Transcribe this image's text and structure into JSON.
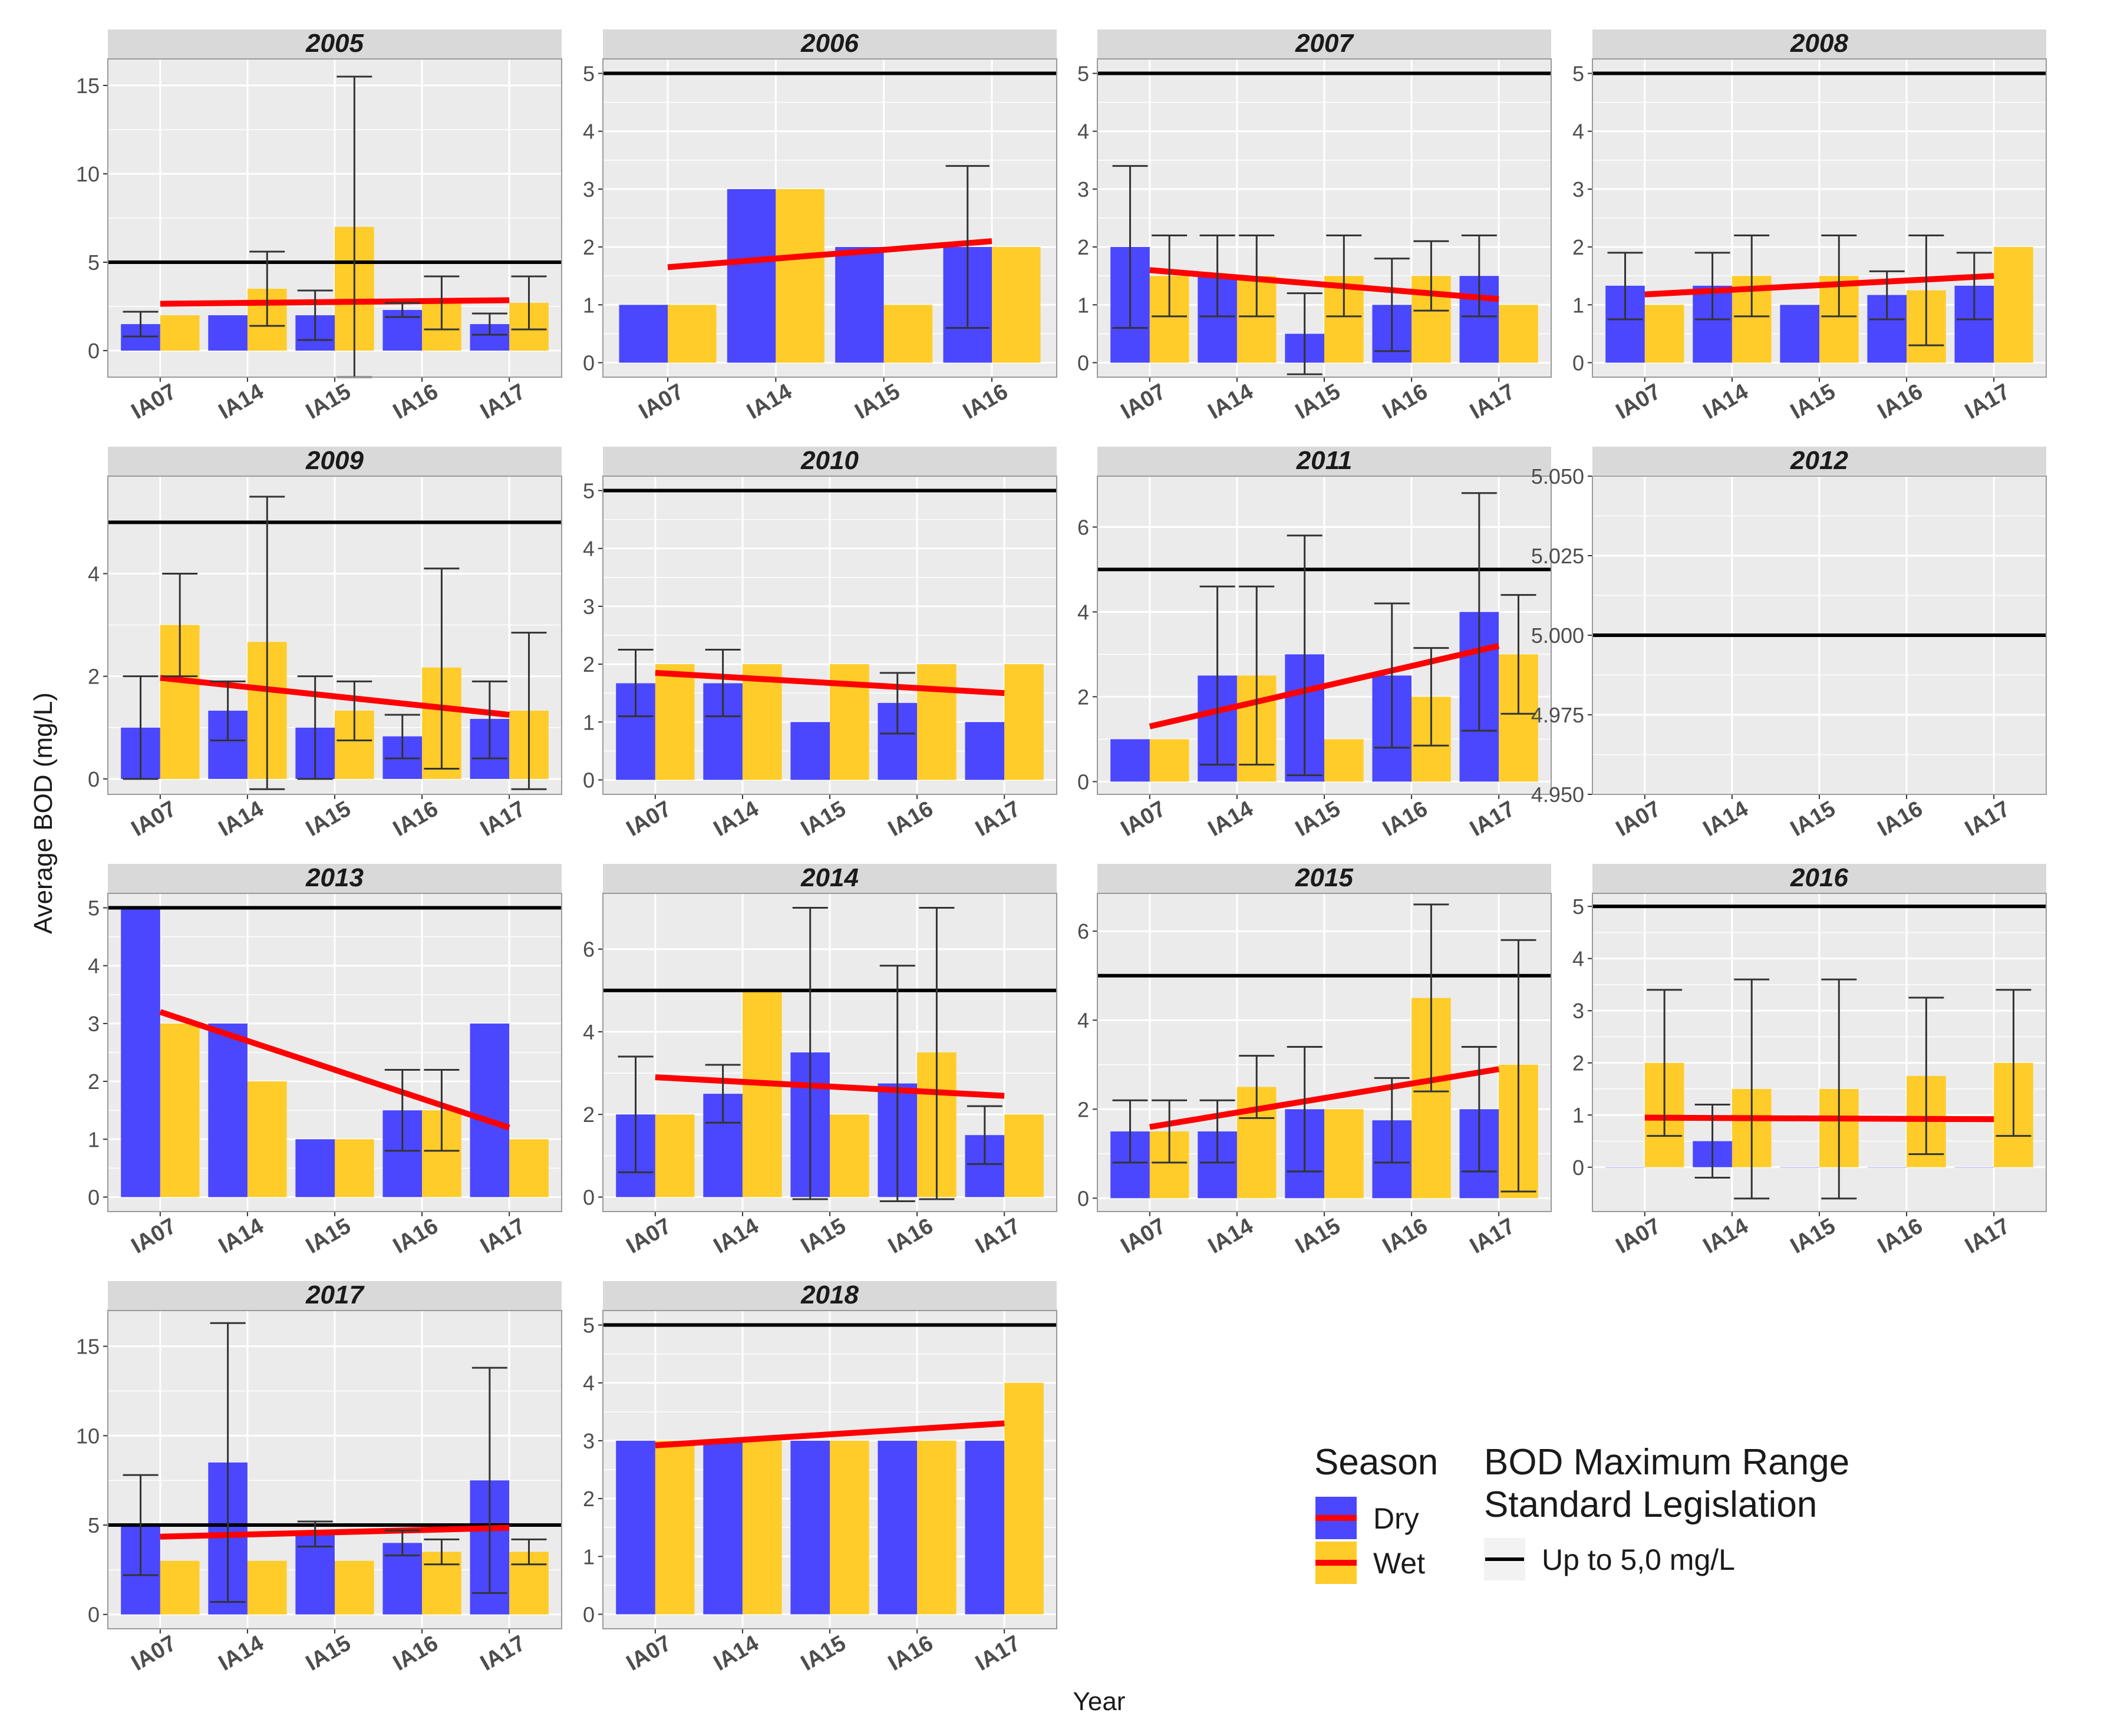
{
  "figure": {
    "y_axis_title": "Average BOD (mg/L)",
    "x_axis_title": "Year",
    "standard_value": 5,
    "colors": {
      "dry": "#4A47FF",
      "wet": "#FFCC29",
      "trend": "#FF0000",
      "standard": "#000000",
      "panel_bg": "#EBEBEB",
      "strip_bg": "#D9D9D9",
      "grid": "#FFFFFF",
      "error_bar": "#333333"
    }
  },
  "legend": {
    "season_title": "Season",
    "dry_label": "Dry",
    "wet_label": "Wet",
    "standard_title_line1": "BOD Maximum Range",
    "standard_title_line2": "Standard Legislation",
    "standard_label": "Up to 5,0 mg/L"
  },
  "chart_data": [
    {
      "type": "bar",
      "title": "2005",
      "categories": [
        "IA07",
        "IA14",
        "IA15",
        "IA16",
        "IA17"
      ],
      "ylim": [
        -1.5,
        16.5
      ],
      "yticks": [
        "0",
        "5",
        "10",
        "15"
      ],
      "ytick_values": [
        0,
        5,
        10,
        15
      ],
      "series": [
        {
          "name": "Dry",
          "values": [
            1.5,
            2.0,
            2.0,
            2.3,
            1.5
          ],
          "err_low": [
            0.8,
            null,
            0.6,
            1.9,
            0.9
          ],
          "err_high": [
            2.2,
            null,
            3.4,
            2.7,
            2.1
          ]
        },
        {
          "name": "Wet",
          "values": [
            2.0,
            3.5,
            7.0,
            2.7,
            2.7
          ],
          "err_low": [
            null,
            1.4,
            -1.5,
            1.2,
            1.2
          ],
          "err_high": [
            null,
            5.6,
            15.5,
            4.2,
            4.2
          ]
        }
      ],
      "trend": [
        2.65,
        2.85
      ]
    },
    {
      "type": "bar",
      "title": "2006",
      "categories": [
        "IA07",
        "IA14",
        "IA15",
        "IA16"
      ],
      "ylim": [
        -0.25,
        5.25
      ],
      "yticks": [
        "0",
        "1",
        "2",
        "3",
        "4",
        "5"
      ],
      "ytick_values": [
        0,
        1,
        2,
        3,
        4,
        5
      ],
      "series": [
        {
          "name": "Dry",
          "values": [
            1,
            3,
            2,
            2
          ],
          "err_low": [
            null,
            null,
            null,
            0.6
          ],
          "err_high": [
            null,
            null,
            null,
            3.4
          ]
        },
        {
          "name": "Wet",
          "values": [
            1,
            3,
            1,
            2
          ],
          "err_low": [
            null,
            null,
            null,
            null
          ],
          "err_high": [
            null,
            null,
            null,
            null
          ]
        }
      ],
      "trend": [
        1.65,
        2.1
      ]
    },
    {
      "type": "bar",
      "title": "2007",
      "categories": [
        "IA07",
        "IA14",
        "IA15",
        "IA16",
        "IA17"
      ],
      "ylim": [
        -0.25,
        5.25
      ],
      "yticks": [
        "0",
        "1",
        "2",
        "3",
        "4",
        "5"
      ],
      "ytick_values": [
        0,
        1,
        2,
        3,
        4,
        5
      ],
      "series": [
        {
          "name": "Dry",
          "values": [
            2.0,
            1.5,
            0.5,
            1.0,
            1.5
          ],
          "err_low": [
            0.6,
            0.8,
            -0.2,
            0.2,
            0.8
          ],
          "err_high": [
            3.4,
            2.2,
            1.2,
            1.8,
            2.2
          ]
        },
        {
          "name": "Wet",
          "values": [
            1.5,
            1.5,
            1.5,
            1.5,
            1.0
          ],
          "err_low": [
            0.8,
            0.8,
            0.8,
            0.9,
            null
          ],
          "err_high": [
            2.2,
            2.2,
            2.2,
            2.1,
            null
          ]
        }
      ],
      "trend": [
        1.6,
        1.1
      ]
    },
    {
      "type": "bar",
      "title": "2008",
      "categories": [
        "IA07",
        "IA14",
        "IA15",
        "IA16",
        "IA17"
      ],
      "ylim": [
        -0.25,
        5.25
      ],
      "yticks": [
        "0",
        "1",
        "2",
        "3",
        "4",
        "5"
      ],
      "ytick_values": [
        0,
        1,
        2,
        3,
        4,
        5
      ],
      "series": [
        {
          "name": "Dry",
          "values": [
            1.33,
            1.33,
            1.0,
            1.17,
            1.33
          ],
          "err_low": [
            0.75,
            0.75,
            null,
            0.75,
            0.75
          ],
          "err_high": [
            1.9,
            1.9,
            null,
            1.58,
            1.9
          ]
        },
        {
          "name": "Wet",
          "values": [
            1.0,
            1.5,
            1.5,
            1.25,
            2.0
          ],
          "err_low": [
            null,
            0.8,
            0.8,
            0.3,
            null
          ],
          "err_high": [
            null,
            2.2,
            2.2,
            2.2,
            null
          ]
        }
      ],
      "trend": [
        1.18,
        1.5
      ]
    },
    {
      "type": "bar",
      "title": "2009",
      "categories": [
        "IA07",
        "IA14",
        "IA15",
        "IA16",
        "IA17"
      ],
      "ylim": [
        -0.3,
        5.9
      ],
      "yticks": [
        "0",
        "2",
        "4"
      ],
      "ytick_values": [
        0,
        2,
        4
      ],
      "series": [
        {
          "name": "Dry",
          "values": [
            1.0,
            1.33,
            1.0,
            0.83,
            1.17
          ],
          "err_low": [
            0.0,
            0.75,
            0.0,
            0.4,
            0.4
          ],
          "err_high": [
            2.0,
            1.9,
            2.0,
            1.25,
            1.9
          ]
        },
        {
          "name": "Wet",
          "values": [
            3.0,
            2.67,
            1.33,
            2.17,
            1.33
          ],
          "err_low": [
            2.0,
            -0.2,
            0.75,
            0.2,
            -0.2
          ],
          "err_high": [
            4.0,
            5.5,
            1.9,
            4.1,
            2.85
          ]
        }
      ],
      "trend": [
        1.97,
        1.25
      ]
    },
    {
      "type": "bar",
      "title": "2010",
      "categories": [
        "IA07",
        "IA14",
        "IA15",
        "IA16",
        "IA17"
      ],
      "ylim": [
        -0.25,
        5.25
      ],
      "yticks": [
        "0",
        "1",
        "2",
        "3",
        "4",
        "5"
      ],
      "ytick_values": [
        0,
        1,
        2,
        3,
        4,
        5
      ],
      "series": [
        {
          "name": "Dry",
          "values": [
            1.67,
            1.67,
            1.0,
            1.33,
            1.0
          ],
          "err_low": [
            1.1,
            1.1,
            null,
            0.8,
            null
          ],
          "err_high": [
            2.25,
            2.25,
            null,
            1.85,
            null
          ]
        },
        {
          "name": "Wet",
          "values": [
            2.0,
            2.0,
            2.0,
            2.0,
            2.0
          ],
          "err_low": [
            null,
            null,
            null,
            null,
            null
          ],
          "err_high": [
            null,
            null,
            null,
            null,
            null
          ]
        }
      ],
      "trend": [
        1.85,
        1.5
      ]
    },
    {
      "type": "bar",
      "title": "2011",
      "categories": [
        "IA07",
        "IA14",
        "IA15",
        "IA16",
        "IA17"
      ],
      "ylim": [
        -0.3,
        7.2
      ],
      "yticks": [
        "0",
        "2",
        "4",
        "6"
      ],
      "ytick_values": [
        0,
        2,
        4,
        6
      ],
      "series": [
        {
          "name": "Dry",
          "values": [
            1.0,
            2.5,
            3.0,
            2.5,
            4.0
          ],
          "err_low": [
            null,
            0.4,
            0.15,
            0.8,
            1.2
          ],
          "err_high": [
            null,
            4.6,
            5.8,
            4.2,
            6.8
          ]
        },
        {
          "name": "Wet",
          "values": [
            1.0,
            2.5,
            1.0,
            2.0,
            3.0
          ],
          "err_low": [
            null,
            0.4,
            null,
            0.85,
            1.6
          ],
          "err_high": [
            null,
            4.6,
            null,
            3.15,
            4.4
          ]
        }
      ],
      "trend": [
        1.3,
        3.2
      ]
    },
    {
      "type": "bar",
      "title": "2012",
      "categories": [
        "IA07",
        "IA14",
        "IA15",
        "IA16",
        "IA17"
      ],
      "ylim": [
        4.95,
        5.05
      ],
      "yticks": [
        "4.950",
        "4.975",
        "5.000",
        "5.025",
        "5.050"
      ],
      "ytick_values": [
        4.95,
        4.975,
        5.0,
        5.025,
        5.05
      ],
      "series": [
        {
          "name": "Dry",
          "values": [
            null,
            null,
            null,
            null,
            null
          ],
          "err_low": [
            null,
            null,
            null,
            null,
            null
          ],
          "err_high": [
            null,
            null,
            null,
            null,
            null
          ]
        },
        {
          "name": "Wet",
          "values": [
            null,
            null,
            null,
            null,
            null
          ],
          "err_low": [
            null,
            null,
            null,
            null,
            null
          ],
          "err_high": [
            null,
            null,
            null,
            null,
            null
          ]
        }
      ],
      "trend": null
    },
    {
      "type": "bar",
      "title": "2013",
      "categories": [
        "IA07",
        "IA14",
        "IA15",
        "IA16",
        "IA17"
      ],
      "ylim": [
        -0.25,
        5.25
      ],
      "yticks": [
        "0",
        "1",
        "2",
        "3",
        "4",
        "5"
      ],
      "ytick_values": [
        0,
        1,
        2,
        3,
        4,
        5
      ],
      "series": [
        {
          "name": "Dry",
          "values": [
            5.0,
            3.0,
            1.0,
            1.5,
            3.0
          ],
          "err_low": [
            null,
            null,
            null,
            0.8,
            null
          ],
          "err_high": [
            null,
            null,
            null,
            2.2,
            null
          ]
        },
        {
          "name": "Wet",
          "values": [
            3.0,
            2.0,
            1.0,
            1.5,
            1.0
          ],
          "err_low": [
            null,
            null,
            null,
            0.8,
            null
          ],
          "err_high": [
            null,
            null,
            null,
            2.2,
            null
          ]
        }
      ],
      "trend": [
        3.2,
        1.2
      ]
    },
    {
      "type": "bar",
      "title": "2014",
      "categories": [
        "IA07",
        "IA14",
        "IA15",
        "IA16",
        "IA17"
      ],
      "ylim": [
        -0.35,
        7.35
      ],
      "yticks": [
        "0",
        "2",
        "4",
        "6"
      ],
      "ytick_values": [
        0,
        2,
        4,
        6
      ],
      "series": [
        {
          "name": "Dry",
          "values": [
            2.0,
            2.5,
            3.5,
            2.75,
            1.5
          ],
          "err_low": [
            0.6,
            1.8,
            -0.05,
            -0.1,
            0.8
          ],
          "err_high": [
            3.4,
            3.2,
            7.0,
            5.6,
            2.2
          ]
        },
        {
          "name": "Wet",
          "values": [
            2.0,
            5.0,
            2.0,
            3.5,
            2.0
          ],
          "err_low": [
            null,
            null,
            null,
            -0.05,
            null
          ],
          "err_high": [
            null,
            null,
            null,
            7.0,
            null
          ]
        }
      ],
      "trend": [
        2.9,
        2.45
      ]
    },
    {
      "type": "bar",
      "title": "2015",
      "categories": [
        "IA07",
        "IA14",
        "IA15",
        "IA16",
        "IA17"
      ],
      "ylim": [
        -0.3,
        6.85
      ],
      "yticks": [
        "0",
        "2",
        "4",
        "6"
      ],
      "ytick_values": [
        0,
        2,
        4,
        6
      ],
      "series": [
        {
          "name": "Dry",
          "values": [
            1.5,
            1.5,
            2.0,
            1.75,
            2.0
          ],
          "err_low": [
            0.8,
            0.8,
            0.6,
            0.8,
            0.6
          ],
          "err_high": [
            2.2,
            2.2,
            3.4,
            2.7,
            3.4
          ]
        },
        {
          "name": "Wet",
          "values": [
            1.5,
            2.5,
            2.0,
            4.5,
            3.0
          ],
          "err_low": [
            0.8,
            1.8,
            null,
            2.4,
            0.15
          ],
          "err_high": [
            2.2,
            3.2,
            null,
            6.6,
            5.8
          ]
        }
      ],
      "trend": [
        1.6,
        2.9
      ]
    },
    {
      "type": "bar",
      "title": "2016",
      "categories": [
        "IA07",
        "IA14",
        "IA15",
        "IA16",
        "IA17"
      ],
      "ylim": [
        -0.85,
        5.25
      ],
      "yticks": [
        "0",
        "1",
        "2",
        "3",
        "4",
        "5"
      ],
      "ytick_values": [
        0,
        1,
        2,
        3,
        4,
        5
      ],
      "series": [
        {
          "name": "Dry",
          "values": [
            0,
            0.5,
            0,
            0,
            0
          ],
          "err_low": [
            null,
            -0.2,
            null,
            null,
            null
          ],
          "err_high": [
            null,
            1.2,
            null,
            null,
            null
          ]
        },
        {
          "name": "Wet",
          "values": [
            2.0,
            1.5,
            1.5,
            1.75,
            2.0
          ],
          "err_low": [
            0.6,
            -0.6,
            -0.6,
            0.25,
            0.6
          ],
          "err_high": [
            3.4,
            3.6,
            3.6,
            3.25,
            3.4
          ]
        }
      ],
      "trend": [
        0.95,
        0.92
      ]
    },
    {
      "type": "bar",
      "title": "2017",
      "categories": [
        "IA07",
        "IA14",
        "IA15",
        "IA16",
        "IA17"
      ],
      "ylim": [
        -0.8,
        17.0
      ],
      "yticks": [
        "0",
        "5",
        "10",
        "15"
      ],
      "ytick_values": [
        0,
        5,
        10,
        15
      ],
      "series": [
        {
          "name": "Dry",
          "values": [
            5.0,
            8.5,
            4.5,
            4.0,
            7.5
          ],
          "err_low": [
            2.2,
            0.7,
            3.8,
            3.3,
            1.2
          ],
          "err_high": [
            7.8,
            16.3,
            5.2,
            4.7,
            13.8
          ]
        },
        {
          "name": "Wet",
          "values": [
            3.0,
            3.0,
            3.0,
            3.5,
            3.5
          ],
          "err_low": [
            null,
            null,
            null,
            2.8,
            2.8
          ],
          "err_high": [
            null,
            null,
            null,
            4.2,
            4.2
          ]
        }
      ],
      "trend": [
        4.35,
        4.85
      ]
    },
    {
      "type": "bar",
      "title": "2018",
      "categories": [
        "IA07",
        "IA14",
        "IA15",
        "IA16",
        "IA17"
      ],
      "ylim": [
        -0.25,
        5.25
      ],
      "yticks": [
        "0",
        "1",
        "2",
        "3",
        "4",
        "5"
      ],
      "ytick_values": [
        0,
        1,
        2,
        3,
        4,
        5
      ],
      "series": [
        {
          "name": "Dry",
          "values": [
            3.0,
            3.0,
            3.0,
            3.0,
            3.0
          ],
          "err_low": [
            null,
            null,
            null,
            null,
            null
          ],
          "err_high": [
            null,
            null,
            null,
            null,
            null
          ]
        },
        {
          "name": "Wet",
          "values": [
            3.0,
            3.0,
            3.0,
            3.0,
            4.0
          ],
          "err_low": [
            null,
            null,
            null,
            null,
            null
          ],
          "err_high": [
            null,
            null,
            null,
            null,
            null
          ]
        }
      ],
      "trend": [
        2.92,
        3.3
      ]
    }
  ]
}
